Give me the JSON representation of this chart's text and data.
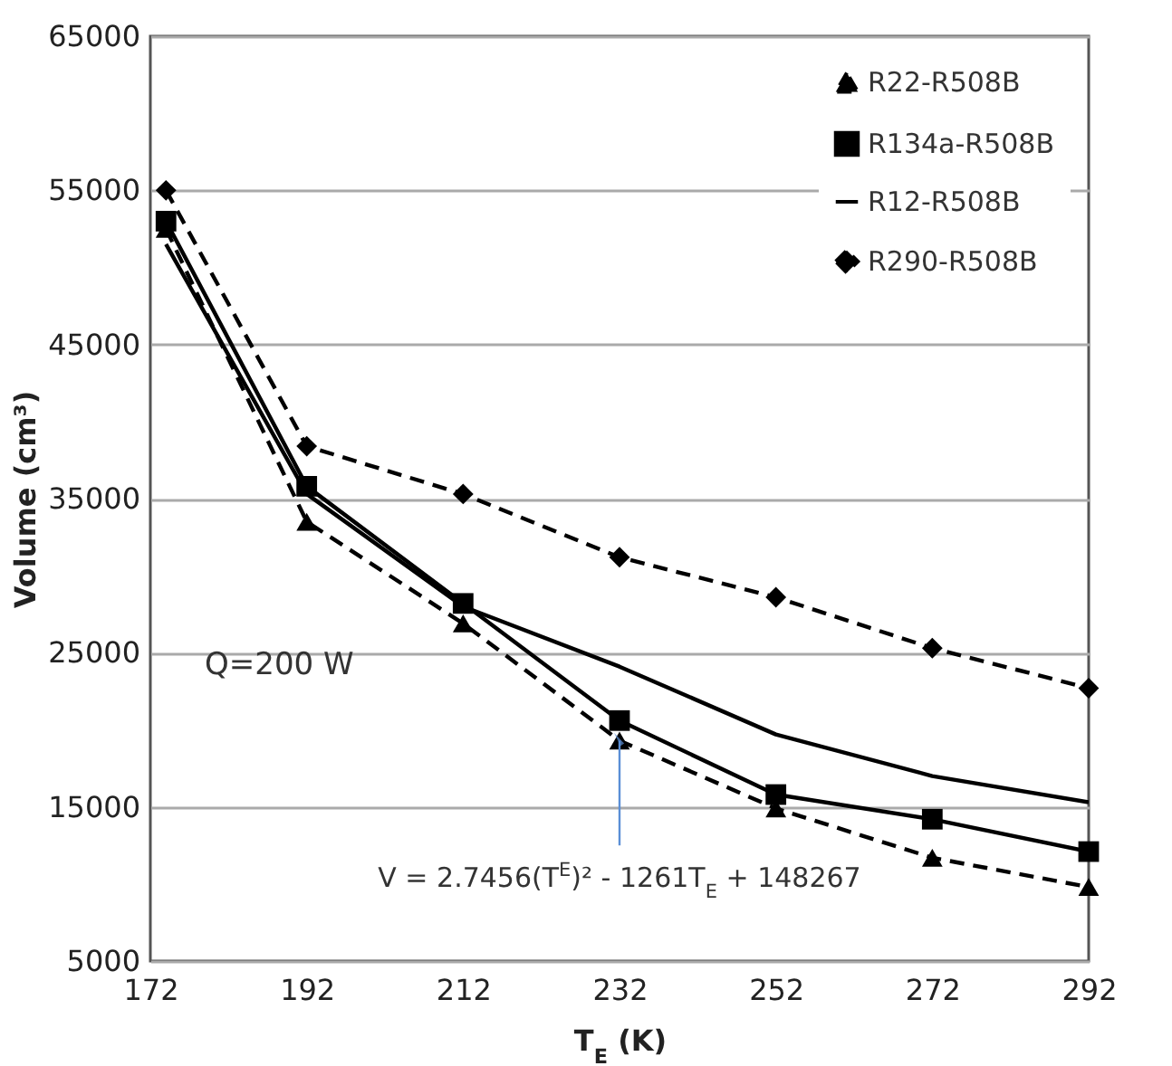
{
  "chart_data": {
    "type": "line",
    "xlabel": "T$_{E}$ (K)",
    "ylabel": "Volume (cm³)",
    "x": [
      174,
      192,
      212,
      232,
      252,
      272,
      292
    ],
    "series": [
      {
        "name": "R22-R508B",
        "color": "#000000",
        "marker": "triangle",
        "line_style": "dashed",
        "values": [
          52500,
          33500,
          26900,
          19300,
          14900,
          11700,
          9800
        ]
      },
      {
        "name": "R134a-R508B",
        "color": "#000000",
        "marker": "square",
        "line_style": "solid",
        "values": [
          53000,
          35800,
          28200,
          20600,
          15800,
          14200,
          12100
        ]
      },
      {
        "name": "R12-R508B",
        "color": "#000000",
        "marker": "none",
        "line_style": "solid",
        "values": [
          51500,
          35300,
          28000,
          24100,
          19700,
          17000,
          15300
        ]
      },
      {
        "name": "R290-R508B",
        "color": "#000000",
        "marker": "diamond",
        "line_style": "dashed",
        "values": [
          55000,
          38400,
          35300,
          31200,
          28600,
          25300,
          22700
        ]
      }
    ],
    "xlim": [
      172,
      292
    ],
    "xticks": [
      172,
      192,
      212,
      232,
      252,
      272,
      292
    ],
    "ylim": [
      5000,
      65000
    ],
    "yticks": [
      5000,
      15000,
      25000,
      35000,
      45000,
      55000,
      65000
    ],
    "grid": "y",
    "legend": "top right",
    "annotations": [
      "Q=200  W",
      {
        "text": "V = 2.7456(T$^{E}$)² - 1261T$_{E}$ + 148267",
        "x": 232,
        "y": 19300
      }
    ]
  }
}
